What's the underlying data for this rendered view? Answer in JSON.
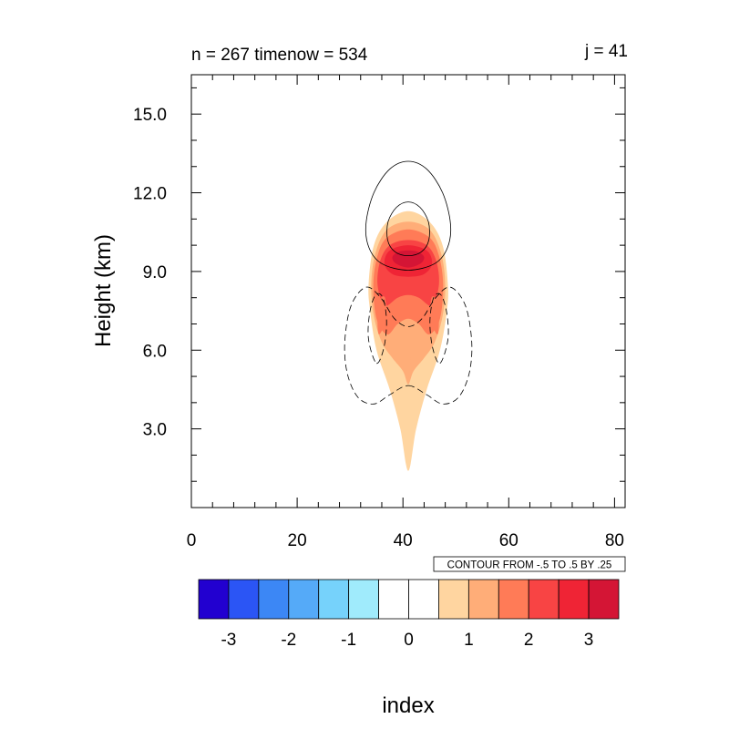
{
  "header": {
    "left_title": "n = 267 timenow = 534",
    "right_title": "j = 41"
  },
  "chart_data": {
    "type": "contour",
    "ylabel": "Height (km)",
    "xlabel": "index",
    "xlim": [
      0,
      82
    ],
    "ylim": [
      0,
      16.5
    ],
    "x_ticks": [
      0,
      20,
      40,
      60,
      80
    ],
    "x_tick_labels": [
      "0",
      "20",
      "40",
      "60",
      "80"
    ],
    "y_ticks": [
      3.0,
      6.0,
      9.0,
      12.0,
      15.0
    ],
    "y_tick_labels": [
      "3.0",
      "6.0",
      "9.0",
      "12.0",
      "15.0"
    ],
    "contour_info": "CONTOUR FROM -.5 TO .5 BY .25",
    "colorbar": {
      "colors": [
        "#2200d0",
        "#2b55f5",
        "#3c87f5",
        "#55aaf8",
        "#76d2fb",
        "#a0ebfc",
        "#ffffff",
        "#ffffff",
        "#ffd5a0",
        "#ffad78",
        "#ff7b57",
        "#f84444",
        "#ef2435",
        "#d41535"
      ],
      "labels": [
        "-3",
        "-2",
        "-1",
        "0",
        "1",
        "2",
        "3"
      ],
      "levels": [
        -3,
        -2.5,
        -2,
        -1.5,
        -1,
        -0.5,
        0,
        0.5,
        1,
        1.5,
        2,
        2.5,
        3
      ]
    },
    "filled_regions": [
      {
        "level": 0.5,
        "color": "#ffd5a0",
        "outline": [
          [
            41,
            1.4
          ],
          [
            42.5,
            3
          ],
          [
            44.5,
            4.5
          ],
          [
            47,
            6
          ],
          [
            48.3,
            7.5
          ],
          [
            48.5,
            8.5
          ],
          [
            47.5,
            10
          ],
          [
            45,
            10.9
          ],
          [
            41,
            11.3
          ],
          [
            37,
            10.9
          ],
          [
            34.5,
            10
          ],
          [
            33.5,
            8.5
          ],
          [
            33.8,
            7.5
          ],
          [
            35,
            6
          ],
          [
            37.5,
            4.5
          ],
          [
            39.5,
            3
          ]
        ]
      },
      {
        "level": 1.0,
        "color": "#ffad78",
        "outline": [
          [
            41,
            4.7
          ],
          [
            42,
            5.2
          ],
          [
            44,
            5.7
          ],
          [
            46,
            6.3
          ],
          [
            47.5,
            7.3
          ],
          [
            48,
            8.5
          ],
          [
            47.2,
            9.7
          ],
          [
            45,
            10.6
          ],
          [
            41,
            10.9
          ],
          [
            37,
            10.6
          ],
          [
            34.8,
            9.7
          ],
          [
            34,
            8.5
          ],
          [
            34.5,
            7.3
          ],
          [
            36,
            6.3
          ],
          [
            38,
            5.7
          ],
          [
            40,
            5.2
          ]
        ]
      },
      {
        "level": 1.5,
        "color": "#ff7b57",
        "outline": [
          [
            41,
            7.2
          ],
          [
            43,
            7.0
          ],
          [
            45,
            6.6
          ],
          [
            47,
            7.2
          ],
          [
            47.6,
            8.5
          ],
          [
            46.8,
            9.6
          ],
          [
            45,
            10.3
          ],
          [
            41,
            10.6
          ],
          [
            37,
            10.3
          ],
          [
            35.2,
            9.6
          ],
          [
            34.4,
            8.5
          ],
          [
            35,
            7.2
          ],
          [
            37,
            6.6
          ],
          [
            39,
            7.0
          ]
        ]
      },
      {
        "level": 2.0,
        "color": "#f84444",
        "outline": [
          [
            41,
            8.1
          ],
          [
            43,
            8.0
          ],
          [
            45.5,
            7.7
          ],
          [
            46.8,
            8.5
          ],
          [
            46.3,
            9.4
          ],
          [
            44.5,
            10.0
          ],
          [
            41,
            10.2
          ],
          [
            37.5,
            10.0
          ],
          [
            35.7,
            9.4
          ],
          [
            35.2,
            8.5
          ],
          [
            36.5,
            7.7
          ],
          [
            39,
            8.0
          ]
        ]
      },
      {
        "level": 2.5,
        "color": "#ef2435",
        "outline": [
          [
            41,
            8.8
          ],
          [
            44,
            8.9
          ],
          [
            45.5,
            9.3
          ],
          [
            44.5,
            9.8
          ],
          [
            41,
            10.0
          ],
          [
            37.5,
            9.8
          ],
          [
            36.5,
            9.3
          ],
          [
            38,
            8.9
          ]
        ]
      },
      {
        "level": 3.0,
        "color": "#d41535",
        "outline": [
          [
            41,
            9.15
          ],
          [
            43.3,
            9.3
          ],
          [
            44,
            9.55
          ],
          [
            42.8,
            9.75
          ],
          [
            41,
            9.8
          ],
          [
            39.2,
            9.75
          ],
          [
            38,
            9.55
          ],
          [
            38.7,
            9.3
          ]
        ]
      },
      {
        "level": 1.5,
        "color": "#ff7b57",
        "outline": [
          [
            35.5,
            6.6
          ],
          [
            36.8,
            7.2
          ],
          [
            36.6,
            8.0
          ],
          [
            35.6,
            7.9
          ],
          [
            35.2,
            7.2
          ]
        ]
      },
      {
        "level": 1.5,
        "color": "#ff7b57",
        "outline": [
          [
            46.5,
            6.6
          ],
          [
            46.8,
            7.2
          ],
          [
            46.4,
            7.9
          ],
          [
            45.4,
            8.0
          ],
          [
            45.2,
            7.2
          ]
        ]
      },
      {
        "level": 1.0,
        "color": "#ffad78",
        "outline": [
          [
            40.6,
            5.0
          ],
          [
            41.4,
            5.0
          ],
          [
            41.3,
            6.2
          ],
          [
            40.7,
            6.2
          ]
        ]
      }
    ],
    "contour_lines": [
      {
        "level": 0.25,
        "style": "solid",
        "points": [
          [
            41,
            13.2
          ],
          [
            44.5,
            12.9
          ],
          [
            47.5,
            12.0
          ],
          [
            49,
            10.8
          ],
          [
            48.4,
            9.9
          ],
          [
            46,
            9.3
          ],
          [
            41,
            9.05
          ],
          [
            36,
            9.3
          ],
          [
            33.6,
            9.9
          ],
          [
            33,
            10.8
          ],
          [
            34.5,
            12.0
          ],
          [
            37.5,
            12.9
          ]
        ]
      },
      {
        "level": 0.5,
        "style": "solid",
        "points": [
          [
            41,
            11.65
          ],
          [
            43.2,
            11.45
          ],
          [
            44.8,
            10.9
          ],
          [
            44.9,
            10.2
          ],
          [
            43.5,
            9.75
          ],
          [
            41,
            9.6
          ],
          [
            38.5,
            9.75
          ],
          [
            37.1,
            10.2
          ],
          [
            37.2,
            10.9
          ],
          [
            38.8,
            11.45
          ]
        ]
      },
      {
        "level": -0.25,
        "style": "dashed",
        "points": [
          [
            41,
            4.65
          ],
          [
            44.5,
            4.3
          ],
          [
            47.5,
            3.95
          ],
          [
            50.5,
            4.2
          ],
          [
            52.5,
            5.1
          ],
          [
            53,
            6.3
          ],
          [
            51.8,
            7.7
          ],
          [
            49,
            8.4
          ],
          [
            46.2,
            8.0
          ],
          [
            43.6,
            7.2
          ],
          [
            41,
            6.9
          ],
          [
            38.4,
            7.2
          ],
          [
            35.8,
            8.0
          ],
          [
            33,
            8.4
          ],
          [
            30.2,
            7.7
          ],
          [
            29,
            6.3
          ],
          [
            29.5,
            5.1
          ],
          [
            31.5,
            4.2
          ],
          [
            34.5,
            3.95
          ],
          [
            37.5,
            4.3
          ]
        ]
      },
      {
        "level": -0.5,
        "style": "dashed",
        "points": [
          [
            35,
            5.5
          ],
          [
            36.4,
            6.1
          ],
          [
            36.9,
            7.1
          ],
          [
            36.2,
            8.0
          ],
          [
            34.8,
            8.1
          ],
          [
            33.7,
            7.4
          ],
          [
            33.5,
            6.4
          ]
        ]
      },
      {
        "level": -0.5,
        "style": "dashed",
        "points": [
          [
            47,
            5.5
          ],
          [
            48.5,
            6.4
          ],
          [
            48.3,
            7.4
          ],
          [
            47.2,
            8.1
          ],
          [
            45.8,
            8.0
          ],
          [
            45.1,
            7.1
          ],
          [
            45.6,
            6.1
          ]
        ]
      }
    ]
  }
}
